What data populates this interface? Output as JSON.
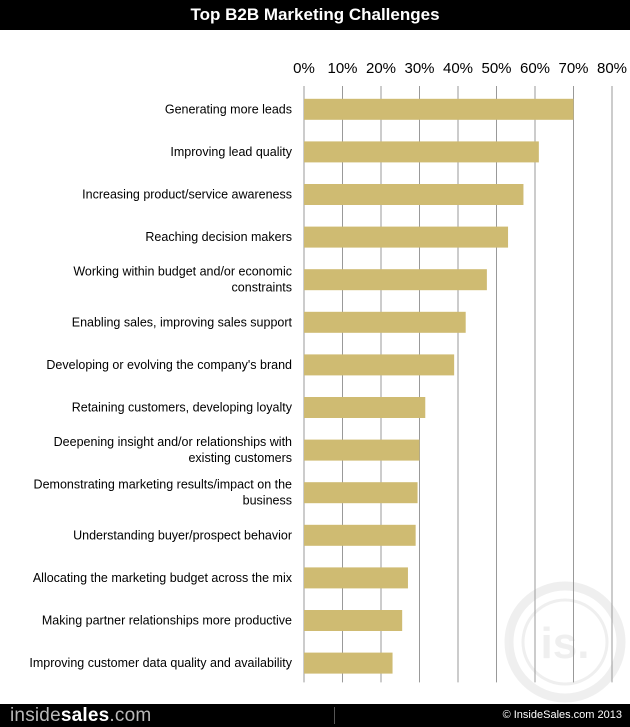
{
  "header": {
    "title": "Top B2B Marketing Challenges"
  },
  "chart_data": {
    "type": "bar",
    "orientation": "horizontal",
    "title": "Top B2B Marketing Challenges",
    "xlabel": "",
    "ylabel": "",
    "xlim": [
      0,
      80
    ],
    "ticks": [
      "0%",
      "10%",
      "20%",
      "30%",
      "40%",
      "50%",
      "60%",
      "70%",
      "80%"
    ],
    "grid": true,
    "categories": [
      [
        "Generating more leads"
      ],
      [
        "Improving lead quality"
      ],
      [
        "Increasing product/service awareness"
      ],
      [
        "Reaching decision makers"
      ],
      [
        "Working within budget and/or economic",
        "constraints"
      ],
      [
        "Enabling sales, improving sales support"
      ],
      [
        "Developing or evolving the company's brand"
      ],
      [
        "Retaining customers, developing loyalty"
      ],
      [
        "Deepening insight and/or relationships with",
        "existing customers"
      ],
      [
        "Demonstrating marketing results/impact on the",
        "business"
      ],
      [
        "Understanding buyer/prospect behavior"
      ],
      [
        "Allocating the marketing budget across the mix"
      ],
      [
        "Making partner relationships more productive"
      ],
      [
        "Improving customer data quality and availability"
      ]
    ],
    "values": [
      70,
      61,
      57,
      53,
      47.5,
      42,
      39,
      31.5,
      30,
      29.5,
      29,
      27,
      25.5,
      23
    ],
    "bar_color": "#cfbb72"
  },
  "footer": {
    "brand_light": "inside",
    "brand_bold": "sales",
    "brand_suffix": ".com",
    "copyright": "© InsideSales.com 2013"
  },
  "watermark": {
    "icon": "insidesales-logo-icon"
  }
}
